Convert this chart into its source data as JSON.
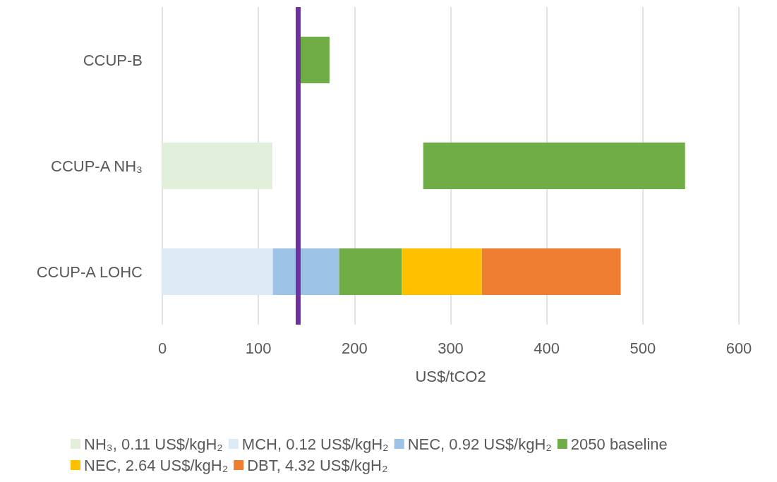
{
  "chart_data": {
    "type": "bar",
    "orientation": "horizontal",
    "xlabel": "US$/tCO2",
    "categories": [
      "CCUP-B",
      "CCUP-A NH₃",
      "CCUP-A LOHC"
    ],
    "series": [
      {
        "name": "NH₃, 0.11 US$/kgH₂",
        "color": "#e2efda",
        "values": [
          null,
          114.5,
          null
        ],
        "base": [
          null,
          0,
          null
        ]
      },
      {
        "name": "MCH, 0.12 US$/kgH₂",
        "color": "#ddebf7",
        "values": [
          null,
          null,
          115
        ],
        "base": [
          null,
          null,
          0
        ]
      },
      {
        "name": "NEC, 0.92 US$/kgH₂",
        "color": "#9dc3e6",
        "values": [
          null,
          null,
          69
        ],
        "base": [
          null,
          null,
          115
        ]
      },
      {
        "name": "2050 baseline",
        "color": "#70ad47",
        "values": [
          31,
          272.5,
          65
        ],
        "base": [
          143,
          271.5,
          184
        ]
      },
      {
        "name": "NEC, 2.64 US$/kgH₂",
        "color": "#ffc000",
        "values": [
          null,
          null,
          83.5
        ],
        "base": [
          null,
          null,
          249
        ]
      },
      {
        "name": "DBT, 4.32 US$/kgH₂",
        "color": "#ed7d31",
        "values": [
          null,
          null,
          144.5
        ],
        "base": [
          null,
          null,
          332.5
        ]
      }
    ],
    "xlim": [
      0,
      600
    ],
    "xticks": [
      0,
      100,
      200,
      300,
      400,
      500,
      600
    ],
    "grid": "x",
    "legend": "bottom",
    "ref_lines": [
      {
        "axis": "x",
        "value": 141,
        "color": "#7030a0"
      }
    ]
  }
}
